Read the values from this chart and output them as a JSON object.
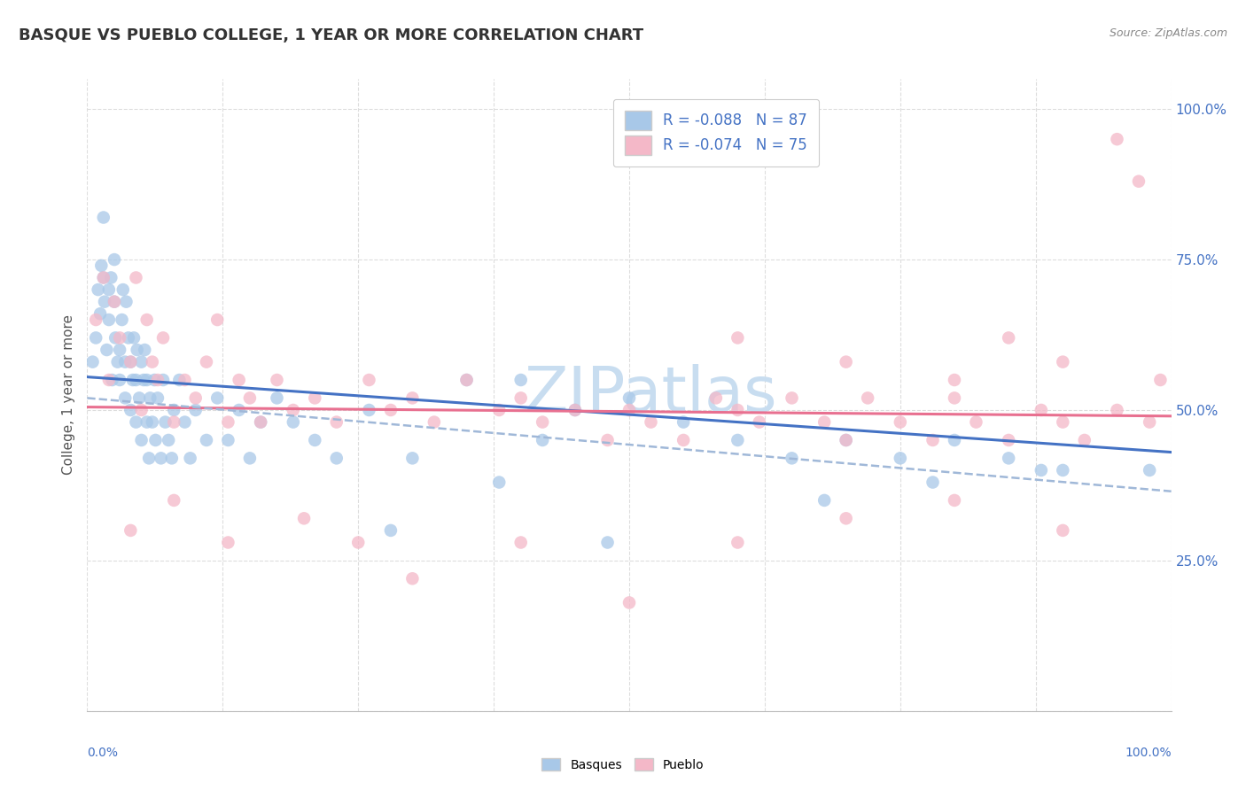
{
  "title": "BASQUE VS PUEBLO COLLEGE, 1 YEAR OR MORE CORRELATION CHART",
  "source_text": "Source: ZipAtlas.com",
  "ylabel": "College, 1 year or more",
  "xlim": [
    0.0,
    1.0
  ],
  "ylim": [
    0.0,
    1.05
  ],
  "yticks": [
    0.0,
    0.25,
    0.5,
    0.75,
    1.0
  ],
  "ytick_labels_right": [
    "",
    "25.0%",
    "50.0%",
    "75.0%",
    "100.0%"
  ],
  "basque_color": "#A8C8E8",
  "pueblo_color": "#F4B8C8",
  "basque_line_color": "#4472C4",
  "pueblo_line_color": "#E87090",
  "trend_dashed_color": "#A0B8D8",
  "background_color": "#FFFFFF",
  "grid_color": "#DDDDDD",
  "watermark_text": "ZIPatlas",
  "watermark_color": "#C8DDF0",
  "title_color": "#333333",
  "source_color": "#888888",
  "tick_label_color": "#4472C4",
  "ylabel_color": "#555555",
  "legend_text_color": "#4472C4",
  "basque_x": [
    0.005,
    0.008,
    0.01,
    0.012,
    0.013,
    0.015,
    0.016,
    0.018,
    0.02,
    0.02,
    0.022,
    0.023,
    0.025,
    0.025,
    0.026,
    0.028,
    0.03,
    0.03,
    0.032,
    0.033,
    0.035,
    0.035,
    0.036,
    0.038,
    0.04,
    0.04,
    0.042,
    0.043,
    0.045,
    0.045,
    0.046,
    0.048,
    0.05,
    0.05,
    0.052,
    0.053,
    0.055,
    0.055,
    0.057,
    0.058,
    0.06,
    0.062,
    0.063,
    0.065,
    0.068,
    0.07,
    0.072,
    0.075,
    0.078,
    0.08,
    0.085,
    0.09,
    0.095,
    0.1,
    0.11,
    0.12,
    0.13,
    0.14,
    0.15,
    0.16,
    0.175,
    0.19,
    0.21,
    0.23,
    0.26,
    0.3,
    0.35,
    0.4,
    0.45,
    0.5,
    0.42,
    0.55,
    0.6,
    0.65,
    0.7,
    0.75,
    0.8,
    0.85,
    0.9,
    0.38,
    0.28,
    0.48,
    0.68,
    0.78,
    0.88,
    0.98,
    0.015
  ],
  "basque_y": [
    0.58,
    0.62,
    0.7,
    0.66,
    0.74,
    0.72,
    0.68,
    0.6,
    0.65,
    0.7,
    0.72,
    0.55,
    0.68,
    0.75,
    0.62,
    0.58,
    0.6,
    0.55,
    0.65,
    0.7,
    0.58,
    0.52,
    0.68,
    0.62,
    0.5,
    0.58,
    0.55,
    0.62,
    0.48,
    0.55,
    0.6,
    0.52,
    0.58,
    0.45,
    0.55,
    0.6,
    0.48,
    0.55,
    0.42,
    0.52,
    0.48,
    0.55,
    0.45,
    0.52,
    0.42,
    0.55,
    0.48,
    0.45,
    0.42,
    0.5,
    0.55,
    0.48,
    0.42,
    0.5,
    0.45,
    0.52,
    0.45,
    0.5,
    0.42,
    0.48,
    0.52,
    0.48,
    0.45,
    0.42,
    0.5,
    0.42,
    0.55,
    0.55,
    0.5,
    0.52,
    0.45,
    0.48,
    0.45,
    0.42,
    0.45,
    0.42,
    0.45,
    0.42,
    0.4,
    0.38,
    0.3,
    0.28,
    0.35,
    0.38,
    0.4,
    0.4,
    0.82
  ],
  "pueblo_x": [
    0.008,
    0.015,
    0.02,
    0.025,
    0.03,
    0.04,
    0.045,
    0.05,
    0.055,
    0.06,
    0.065,
    0.07,
    0.08,
    0.09,
    0.1,
    0.11,
    0.12,
    0.13,
    0.14,
    0.15,
    0.16,
    0.175,
    0.19,
    0.21,
    0.23,
    0.26,
    0.28,
    0.3,
    0.32,
    0.35,
    0.38,
    0.4,
    0.42,
    0.45,
    0.48,
    0.5,
    0.52,
    0.55,
    0.58,
    0.6,
    0.62,
    0.65,
    0.68,
    0.7,
    0.72,
    0.75,
    0.78,
    0.8,
    0.82,
    0.85,
    0.88,
    0.9,
    0.92,
    0.95,
    0.98,
    0.04,
    0.08,
    0.13,
    0.2,
    0.25,
    0.3,
    0.4,
    0.5,
    0.6,
    0.7,
    0.8,
    0.9,
    0.95,
    0.97,
    0.99,
    0.6,
    0.7,
    0.8,
    0.85,
    0.9
  ],
  "pueblo_y": [
    0.65,
    0.72,
    0.55,
    0.68,
    0.62,
    0.58,
    0.72,
    0.5,
    0.65,
    0.58,
    0.55,
    0.62,
    0.48,
    0.55,
    0.52,
    0.58,
    0.65,
    0.48,
    0.55,
    0.52,
    0.48,
    0.55,
    0.5,
    0.52,
    0.48,
    0.55,
    0.5,
    0.52,
    0.48,
    0.55,
    0.5,
    0.52,
    0.48,
    0.5,
    0.45,
    0.5,
    0.48,
    0.45,
    0.52,
    0.5,
    0.48,
    0.52,
    0.48,
    0.45,
    0.52,
    0.48,
    0.45,
    0.52,
    0.48,
    0.45,
    0.5,
    0.48,
    0.45,
    0.5,
    0.48,
    0.3,
    0.35,
    0.28,
    0.32,
    0.28,
    0.22,
    0.28,
    0.18,
    0.28,
    0.32,
    0.35,
    0.3,
    0.95,
    0.88,
    0.55,
    0.62,
    0.58,
    0.55,
    0.62,
    0.58
  ],
  "basque_trend": [
    0.555,
    0.43
  ],
  "pueblo_trend_solid": [
    0.505,
    0.49
  ],
  "pueblo_trend_dashed": [
    0.52,
    0.365
  ]
}
